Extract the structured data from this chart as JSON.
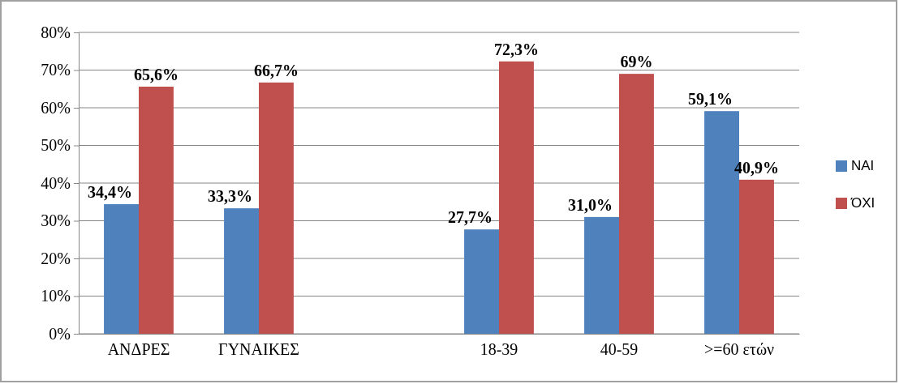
{
  "chart_data": {
    "type": "bar",
    "categories": [
      "ΑΝΔΡΕΣ",
      "ΓΥΝΑΙΚΕΣ",
      null,
      "18-39",
      "40-59",
      ">=60 ετών"
    ],
    "series": [
      {
        "name": "ΝΑΙ",
        "color": "#4f81bd",
        "values": [
          34.4,
          33.3,
          null,
          27.7,
          31.0,
          59.1
        ],
        "value_labels": [
          "34,4%",
          "33,3%",
          null,
          "27,7%",
          "31,0%",
          "59,1%"
        ]
      },
      {
        "name": "ΌΧΙ",
        "color": "#c0504d",
        "values": [
          65.6,
          66.7,
          null,
          72.3,
          69,
          40.9
        ],
        "value_labels": [
          "65,6%",
          "66,7%",
          null,
          "72,3%",
          "69%",
          "40,9%"
        ]
      }
    ],
    "ylim": [
      0,
      80
    ],
    "yticks": [
      {
        "value": 0,
        "label": "0%"
      },
      {
        "value": 10,
        "label": "10%"
      },
      {
        "value": 20,
        "label": "20%"
      },
      {
        "value": 30,
        "label": "30%"
      },
      {
        "value": 40,
        "label": "40%"
      },
      {
        "value": 50,
        "label": "50%"
      },
      {
        "value": 60,
        "label": "60%"
      },
      {
        "value": 70,
        "label": "70%"
      },
      {
        "value": 80,
        "label": "80%"
      }
    ],
    "grid": "y",
    "legend": "right"
  }
}
